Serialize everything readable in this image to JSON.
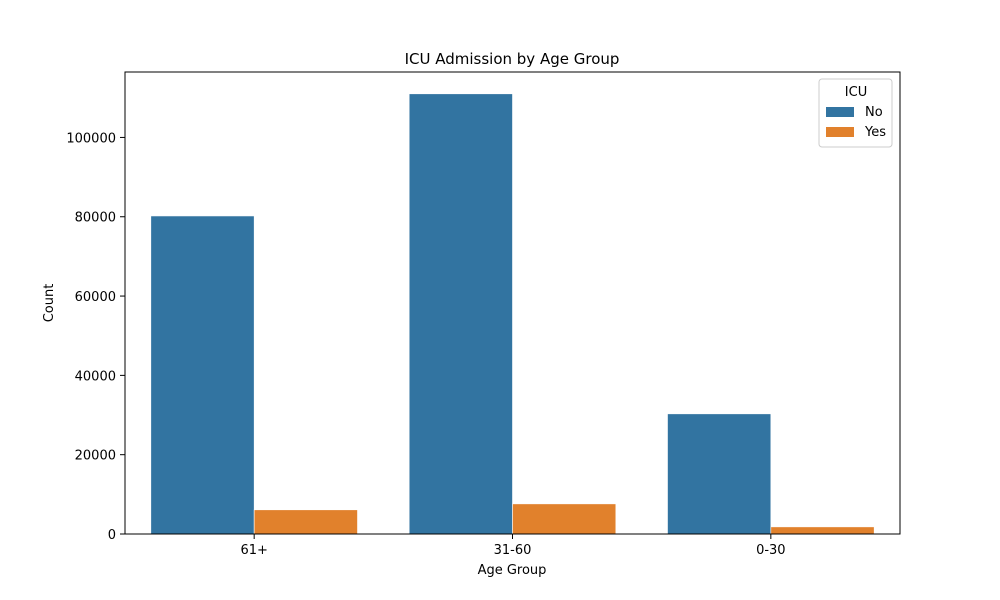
{
  "chart_data": {
    "type": "bar",
    "title": "ICU Admission by Age Group",
    "xlabel": "Age Group",
    "ylabel": "Count",
    "categories": [
      "61+",
      "31-60",
      "0-30"
    ],
    "series": [
      {
        "name": "No",
        "color": "#3274a1",
        "values": [
          80200,
          111000,
          30300
        ]
      },
      {
        "name": "Yes",
        "color": "#e1812c",
        "values": [
          6100,
          7600,
          1800
        ]
      }
    ],
    "ylim": [
      0,
      116500
    ],
    "yticks": [
      0,
      20000,
      40000,
      60000,
      80000,
      100000
    ],
    "ytick_labels": [
      "0",
      "20000",
      "40000",
      "60000",
      "80000",
      "100000"
    ],
    "legend": {
      "title": "ICU",
      "placement": "top-right"
    },
    "grid": false
  }
}
